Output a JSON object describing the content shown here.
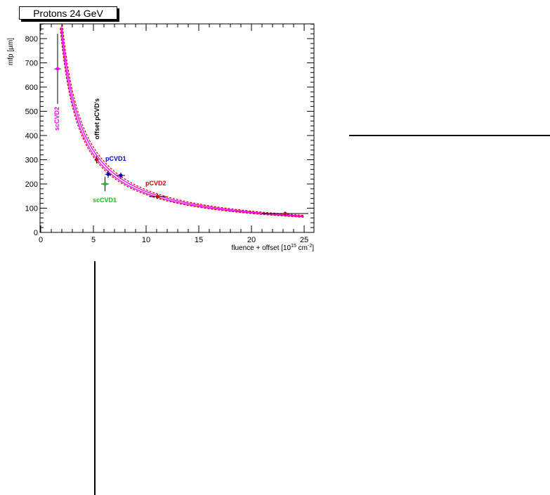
{
  "chart_data": {
    "type": "scatter",
    "title": "Protons 24 GeV",
    "xlabel_main": "fluence + offset [10",
    "xlabel_exp": "15",
    "xlabel_unit": " cm",
    "xlabel_unit_exp": "-2",
    "xlabel_close": "]",
    "ylabel": "mfp [µm]",
    "xlim": [
      0,
      26
    ],
    "ylim": [
      0,
      870
    ],
    "x_ticks": [
      0,
      5,
      10,
      15,
      20,
      25
    ],
    "y_ticks": [
      0,
      100,
      200,
      300,
      400,
      500,
      600,
      700,
      800
    ],
    "fit_curve": {
      "color": "#ff00ff",
      "band_color": "#d40000"
    },
    "points": [
      {
        "label": "scCVD2",
        "x": 1.6,
        "y": 675,
        "yerr": 145,
        "xerr": 0.3,
        "color": "#ff00ff",
        "bar_color": "#000000"
      },
      {
        "label": "offset pCVD's",
        "x": 5.3,
        "y": 300,
        "yerr": 15,
        "xerr": 0.2,
        "color": "#d40000",
        "bar_color": "#000000"
      },
      {
        "label": "pCVD1",
        "x": 6.4,
        "y": 240,
        "yerr": 15,
        "xerr": 0.3,
        "color": "#0000cc",
        "bar_color": "#000000"
      },
      {
        "label": "",
        "x": 7.6,
        "y": 235,
        "yerr": 12,
        "xerr": 0.4,
        "color": "#0000cc",
        "bar_color": "#000000"
      },
      {
        "label": "scCVD1",
        "x": 6.1,
        "y": 200,
        "yerr": 30,
        "xerr": 0.35,
        "color": "#00cc00",
        "bar_color": "#000000"
      },
      {
        "label": "pCVD2",
        "x": 11.1,
        "y": 148,
        "yerr": 10,
        "xerr": 0.8,
        "color": "#d40000",
        "bar_color": "#000000"
      },
      {
        "label": "",
        "x": 23.2,
        "y": 78,
        "yerr": 8,
        "xerr": 2.2,
        "color": "#d40000",
        "bar_color": "#000000"
      }
    ],
    "annotations": [
      {
        "text": "scCVD2",
        "color": "#ff00ff",
        "rotate": true
      },
      {
        "text": "offset pCVD's",
        "color": "#000000",
        "rotate": true
      },
      {
        "text": "pCVD1",
        "color": "#0000cc",
        "rotate": false
      },
      {
        "text": "scCVD1",
        "color": "#00cc00",
        "rotate": false
      },
      {
        "text": "pCVD2",
        "color": "#d40000",
        "rotate": false
      }
    ]
  }
}
